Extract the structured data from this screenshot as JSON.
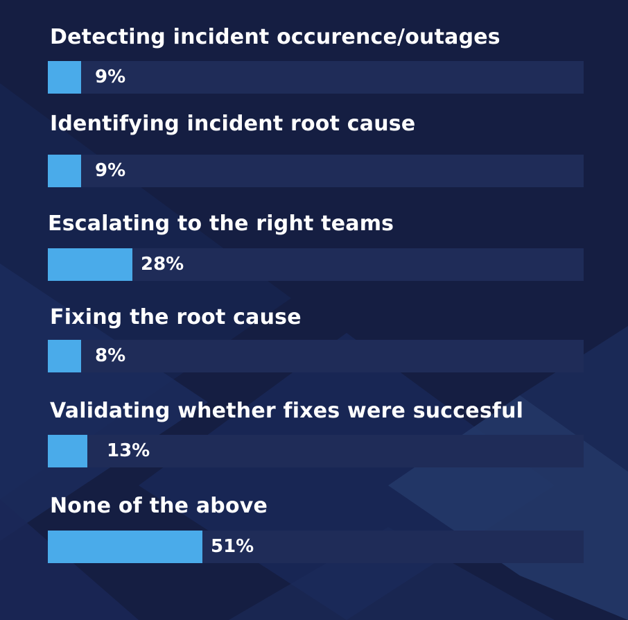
{
  "colors": {
    "background": "#151e42",
    "track": "#1f2c58",
    "bar": "#4aabea",
    "text": "#ffffff"
  },
  "chart_data": {
    "type": "bar",
    "orientation": "horizontal",
    "xlim": [
      0,
      100
    ],
    "grid": false,
    "legend": "none",
    "categories": [
      "Detecting incident occurence/outages",
      "Identifying incident root cause",
      "Escalating to the right teams",
      "Fixing the root cause",
      "Validating whether fixes were succesful",
      "None of the above"
    ],
    "values": [
      9,
      9,
      28,
      8,
      13,
      51
    ],
    "value_labels": [
      "9%",
      "9%",
      "28%",
      "8%",
      "13%",
      "51%"
    ]
  }
}
